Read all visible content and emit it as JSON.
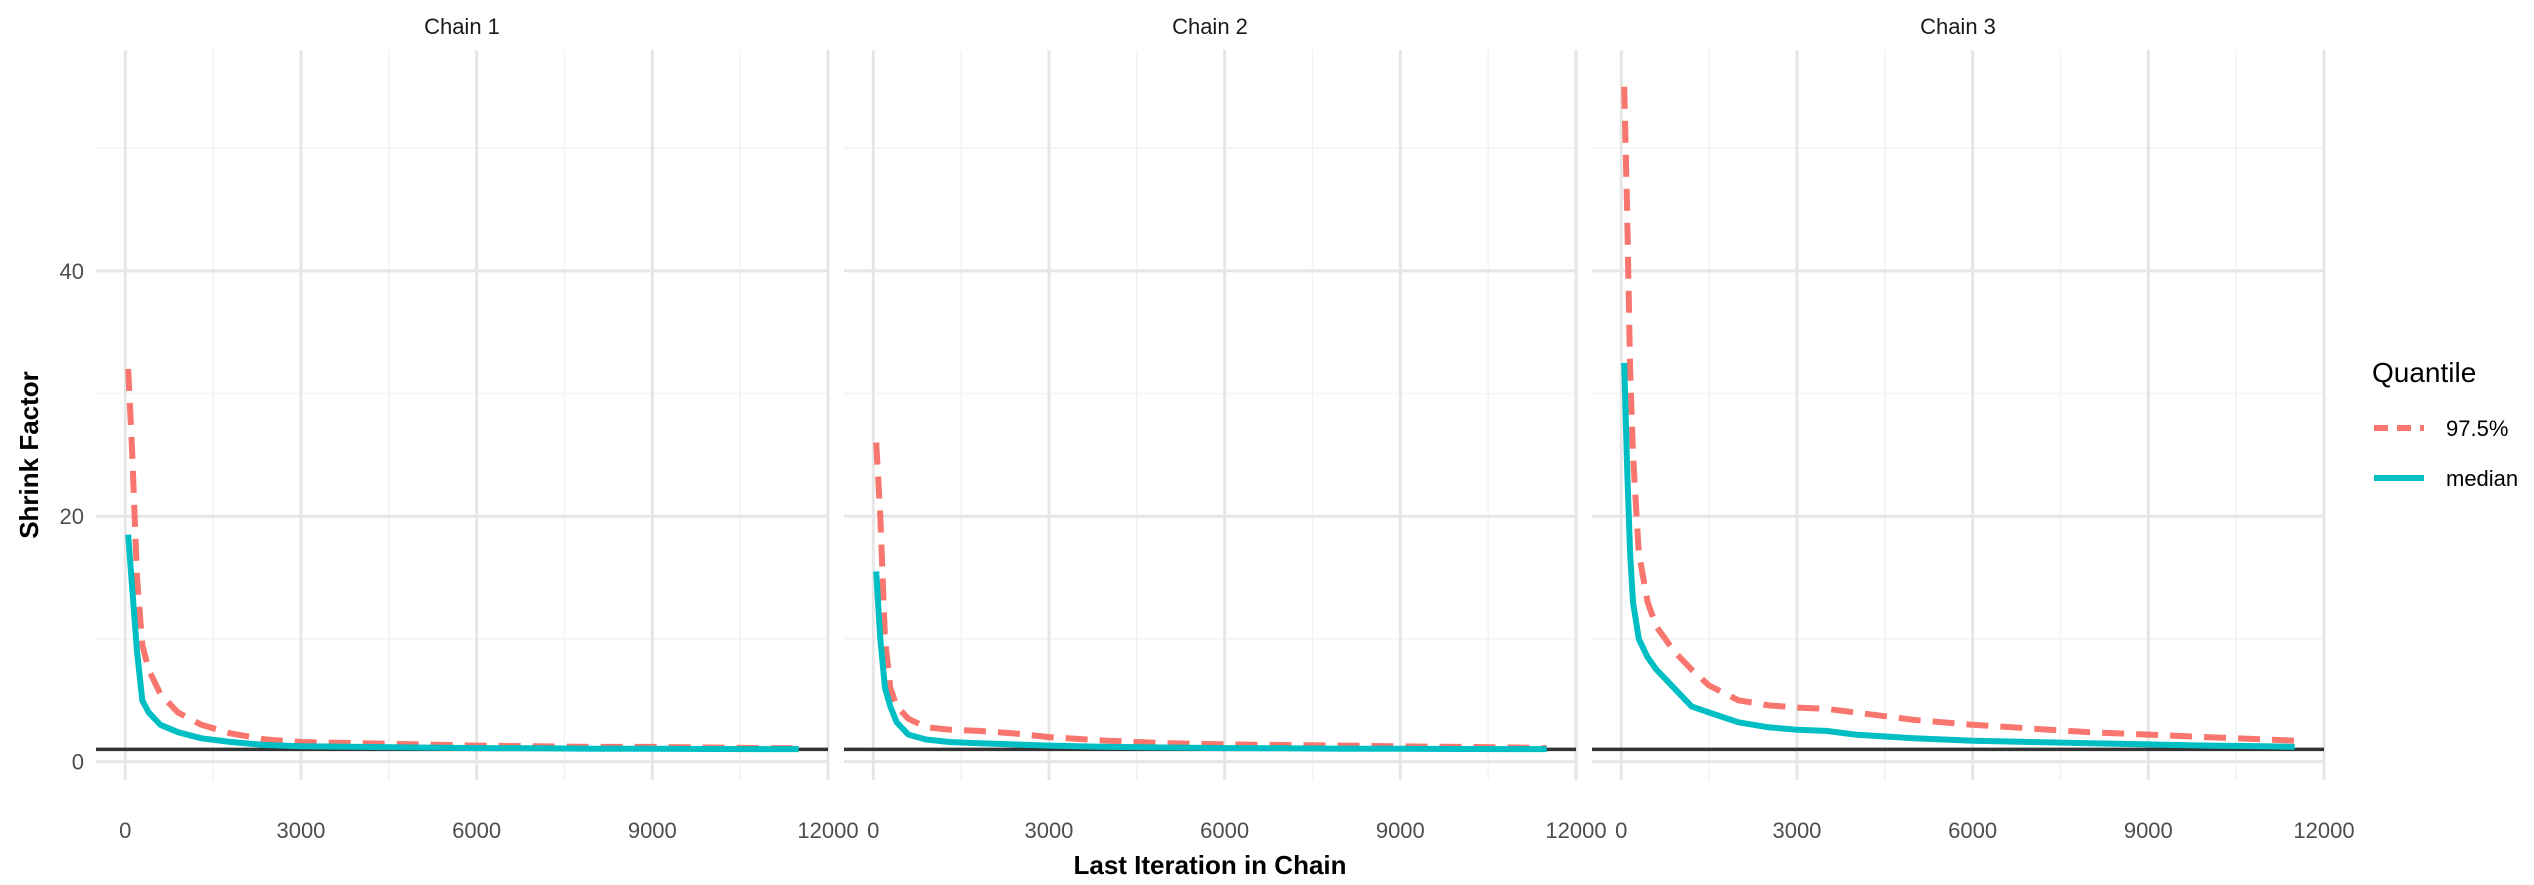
{
  "chart_data": {
    "type": "line",
    "xlabel": "Last Iteration in Chain",
    "ylabel": "Shrink Factor",
    "xlim": [
      -500,
      12000
    ],
    "ylim": [
      -1.5,
      58
    ],
    "x_ticks": [
      0,
      3000,
      6000,
      9000,
      12000
    ],
    "x_tick_labels": [
      "0",
      "3000",
      "6000",
      "9000",
      "12000"
    ],
    "y_ticks": [
      0,
      20,
      40
    ],
    "y_tick_labels": [
      "0",
      "20",
      "40"
    ],
    "reference_line_y": 1,
    "grid": true,
    "legend": {
      "title": "Quantile",
      "position": "right",
      "items": [
        {
          "label": "97.5%",
          "color": "#F8766D",
          "dashed": true
        },
        {
          "label": "median",
          "color": "#00BFC4",
          "dashed": false
        }
      ]
    },
    "panels": [
      {
        "title": "Chain 1",
        "series": [
          {
            "name": "97.5%",
            "color": "#F8766D",
            "dashed": true,
            "x": [
              50,
              120,
              200,
              290,
              400,
              600,
              900,
              1300,
              1800,
              2400,
              3000,
              4000,
              5000,
              6000,
              7000,
              8000,
              9000,
              10000,
              11000,
              11500
            ],
            "y": [
              32,
              25,
              15,
              9.5,
              7.5,
              5.5,
              4,
              3,
              2.3,
              1.8,
              1.6,
              1.5,
              1.4,
              1.3,
              1.25,
              1.2,
              1.2,
              1.15,
              1.1,
              1.1
            ]
          },
          {
            "name": "median",
            "color": "#00BFC4",
            "dashed": false,
            "x": [
              50,
              120,
              200,
              290,
              400,
              600,
              900,
              1300,
              1800,
              2400,
              3000,
              4000,
              5000,
              6000,
              7000,
              8000,
              9000,
              10000,
              11000,
              11500
            ],
            "y": [
              18.5,
              14,
              9,
              5,
              4,
              3,
              2.4,
              1.9,
              1.6,
              1.35,
              1.25,
              1.2,
              1.15,
              1.1,
              1.08,
              1.05,
              1.05,
              1.03,
              1.02,
              1.02
            ]
          }
        ]
      },
      {
        "title": "Chain 2",
        "series": [
          {
            "name": "97.5%",
            "color": "#F8766D",
            "dashed": true,
            "x": [
              50,
              120,
              200,
              290,
              400,
              600,
              900,
              1300,
              1800,
              2400,
              3000,
              4000,
              5000,
              6000,
              7000,
              8000,
              9000,
              10000,
              11000,
              11500
            ],
            "y": [
              26,
              20,
              10,
              6,
              4.5,
              3.5,
              2.8,
              2.6,
              2.5,
              2.3,
              2,
              1.7,
              1.5,
              1.4,
              1.35,
              1.3,
              1.25,
              1.2,
              1.15,
              1.1
            ]
          },
          {
            "name": "median",
            "color": "#00BFC4",
            "dashed": false,
            "x": [
              50,
              120,
              200,
              290,
              400,
              600,
              900,
              1300,
              1800,
              2400,
              3000,
              4000,
              5000,
              6000,
              7000,
              8000,
              9000,
              10000,
              11000,
              11500
            ],
            "y": [
              15.5,
              10,
              6,
              4.5,
              3.2,
              2.2,
              1.8,
              1.6,
              1.5,
              1.4,
              1.3,
              1.2,
              1.15,
              1.1,
              1.08,
              1.05,
              1.05,
              1.03,
              1.02,
              1.02
            ]
          }
        ]
      },
      {
        "title": "Chain 3",
        "series": [
          {
            "name": "97.5%",
            "color": "#F8766D",
            "dashed": true,
            "x": [
              50,
              100,
              150,
              200,
              300,
              450,
              600,
              900,
              1200,
              1500,
              2000,
              2500,
              3000,
              3500,
              4000,
              5000,
              6000,
              7000,
              8000,
              9000,
              10000,
              11000,
              11500
            ],
            "y": [
              55,
              45,
              32,
              25,
              17,
              13,
              11,
              9,
              7.5,
              6.2,
              5,
              4.6,
              4.4,
              4.3,
              4,
              3.4,
              3,
              2.7,
              2.4,
              2.2,
              2,
              1.8,
              1.7
            ]
          },
          {
            "name": "median",
            "color": "#00BFC4",
            "dashed": false,
            "x": [
              50,
              100,
              150,
              200,
              300,
              450,
              600,
              900,
              1200,
              1500,
              2000,
              2500,
              3000,
              3500,
              4000,
              5000,
              6000,
              7000,
              8000,
              9000,
              10000,
              11000,
              11500
            ],
            "y": [
              32.5,
              24,
              17,
              13,
              10,
              8.5,
              7.5,
              6,
              4.5,
              4,
              3.2,
              2.8,
              2.6,
              2.5,
              2.2,
              1.9,
              1.7,
              1.6,
              1.5,
              1.4,
              1.3,
              1.25,
              1.2
            ]
          }
        ]
      }
    ]
  }
}
